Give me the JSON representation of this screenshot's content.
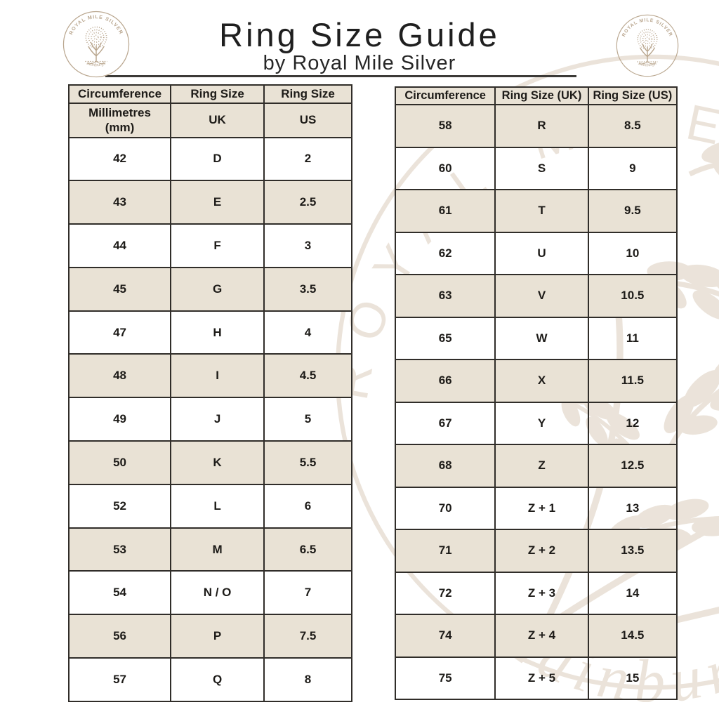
{
  "page": {
    "title": "Ring Size Guide",
    "subtitle": "by Royal Mile Silver"
  },
  "logo": {
    "brand_top": "ROYAL MILE SILVER",
    "brand_bottom": "Edinburgh"
  },
  "colors": {
    "row_beige": "#e9e2d5",
    "table_border": "#302d29",
    "text": "#1d1b18",
    "logo_brown": "#b9a68e",
    "watermark_tan": "#cbb89f"
  },
  "tables": {
    "left": {
      "header_row1": [
        "Circumference",
        "Ring Size",
        "Ring Size"
      ],
      "header_row2": [
        "Millimetres\n(mm)",
        "UK",
        "US"
      ],
      "rows": [
        [
          "42",
          "D",
          "2"
        ],
        [
          "43",
          "E",
          "2.5"
        ],
        [
          "44",
          "F",
          "3"
        ],
        [
          "45",
          "G",
          "3.5"
        ],
        [
          "47",
          "H",
          "4"
        ],
        [
          "48",
          "I",
          "4.5"
        ],
        [
          "49",
          "J",
          "5"
        ],
        [
          "50",
          "K",
          "5.5"
        ],
        [
          "52",
          "L",
          "6"
        ],
        [
          "53",
          "M",
          "6.5"
        ],
        [
          "54",
          "N / O",
          "7"
        ],
        [
          "56",
          "P",
          "7.5"
        ],
        [
          "57",
          "Q",
          "8"
        ]
      ]
    },
    "right": {
      "header": [
        "Circumference",
        "Ring Size (UK)",
        "Ring Size (US)"
      ],
      "rows": [
        [
          "58",
          "R",
          "8.5"
        ],
        [
          "60",
          "S",
          "9"
        ],
        [
          "61",
          "T",
          "9.5"
        ],
        [
          "62",
          "U",
          "10"
        ],
        [
          "63",
          "V",
          "10.5"
        ],
        [
          "65",
          "W",
          "11"
        ],
        [
          "66",
          "X",
          "11.5"
        ],
        [
          "67",
          "Y",
          "12"
        ],
        [
          "68",
          "Z",
          "12.5"
        ],
        [
          "70",
          "Z + 1",
          "13"
        ],
        [
          "71",
          "Z + 2",
          "13.5"
        ],
        [
          "72",
          "Z + 3",
          "14"
        ],
        [
          "74",
          "Z + 4",
          "14.5"
        ],
        [
          "75",
          "Z + 5",
          "15"
        ]
      ]
    }
  }
}
